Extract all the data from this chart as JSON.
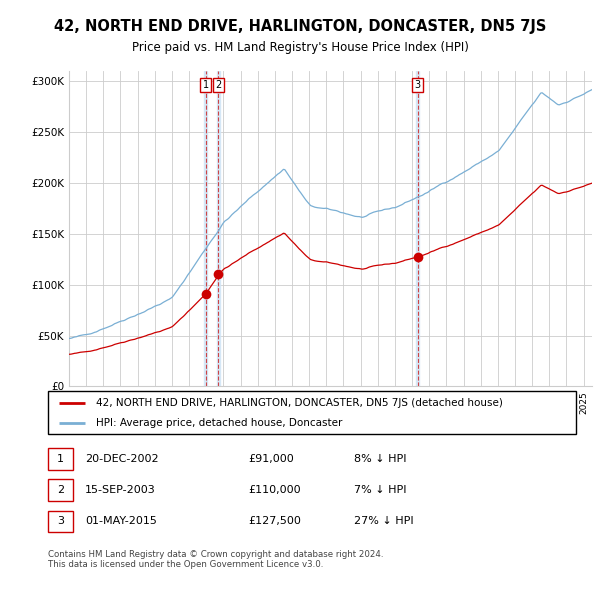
{
  "title": "42, NORTH END DRIVE, HARLINGTON, DONCASTER, DN5 7JS",
  "subtitle": "Price paid vs. HM Land Registry's House Price Index (HPI)",
  "background_color": "#ffffff",
  "plot_bg_color": "#ffffff",
  "grid_color": "#cccccc",
  "hpi_line_color": "#7aafd4",
  "price_line_color": "#cc0000",
  "ylim": [
    0,
    310000
  ],
  "yticks": [
    0,
    50000,
    100000,
    150000,
    200000,
    250000,
    300000
  ],
  "ytick_labels": [
    "£0",
    "£50K",
    "£100K",
    "£150K",
    "£200K",
    "£250K",
    "£300K"
  ],
  "transactions": [
    {
      "num": 1,
      "date_str": "20-DEC-2002",
      "date_x": 2002.96,
      "price": 91000,
      "pct": "8%",
      "direction": "↓"
    },
    {
      "num": 2,
      "date_str": "15-SEP-2003",
      "date_x": 2003.71,
      "price": 110000,
      "pct": "7%",
      "direction": "↓"
    },
    {
      "num": 3,
      "date_str": "01-MAY-2015",
      "date_x": 2015.33,
      "price": 127500,
      "pct": "27%",
      "direction": "↓"
    }
  ],
  "legend_label_red": "42, NORTH END DRIVE, HARLINGTON, DONCASTER, DN5 7JS (detached house)",
  "legend_label_blue": "HPI: Average price, detached house, Doncaster",
  "footer": "Contains HM Land Registry data © Crown copyright and database right 2024.\nThis data is licensed under the Open Government Licence v3.0.",
  "xmin": 1995.0,
  "xmax": 2025.5
}
